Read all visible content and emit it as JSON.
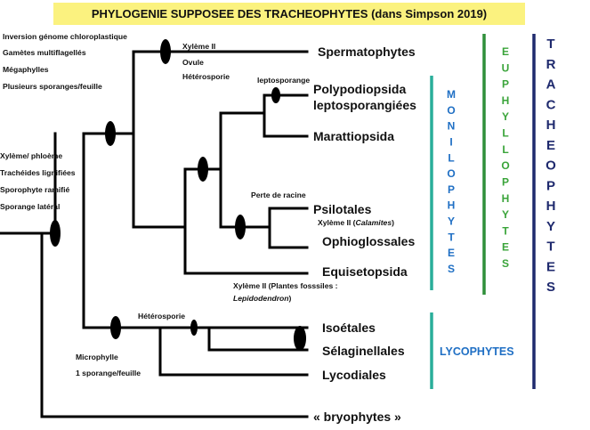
{
  "title": "PHYLOGENIE SUPPOSEE DES TRACHEOPHYTES (dans Simpson 2019)",
  "colors": {
    "title_bg": "#fbf27f",
    "branch": "#000000",
    "moniliophytes": "#2aae9a",
    "moniliophytes_text": "#1f6fc4",
    "euphyllophytes": "#2f8f3a",
    "euphyllophytes_text": "#3aa43a",
    "tracheophytes": "#1f2a6e",
    "tracheophytes_text": "#1f2a6e",
    "lycophytes": "#2aae9a",
    "lycophytes_text": "#1f6fc4"
  },
  "taxa": {
    "spermatophytes": "Spermatophytes",
    "polypodiopsida_1": "Polypodiopsida",
    "polypodiopsida_2": "leptosporangiées",
    "marattiopsida": "Marattiopsida",
    "psilotales": "Psilotales",
    "ophioglossales": "Ophioglossales",
    "equisetopsida": "Equisetopsida",
    "isoetales": "Isoétales",
    "selaginellales": "Sélaginellales",
    "lycodiales": "Lycodiales",
    "bryophytes": "« bryophytes »"
  },
  "characters": {
    "tracheophytes": [
      "Xylème/ phloème",
      "Trachéides lignifiées",
      "Sporophyte ramifié",
      "Sporange latéral"
    ],
    "euphyllophytes": [
      "Inversion génome chloroplastique",
      "Gamètes multiflagellés",
      "Mégaphylles",
      "Plusieurs sporanges/feuille"
    ],
    "spermatophytes": [
      "Xylème II",
      "Ovule",
      "Hétérosporie"
    ],
    "leptosporangiees": "leptosporange",
    "psilotales_note": "Perte de racine",
    "ophioglossales_note_prefix": "Xylème II (",
    "ophioglossales_note_italic": "Calamites",
    "ophioglossales_note_suffix": ")",
    "equisetopsida_note_1": "Xylème II (Plantes fosssiles :",
    "equisetopsida_note_2": "Lepidodendron",
    "equisetopsida_note_2_suffix": ")",
    "heterosporie": "Hétérosporie",
    "lycophytes": [
      "Microphylle",
      "1 sporange/feuille"
    ]
  },
  "groups": {
    "moniliophytes": "MONILOPHYTES",
    "euphyllophytes": "EUPHYLLOPHYTES",
    "tracheophytes": "TRACHEOPHYTES",
    "lycophytes": "LYCOPHYTES"
  }
}
